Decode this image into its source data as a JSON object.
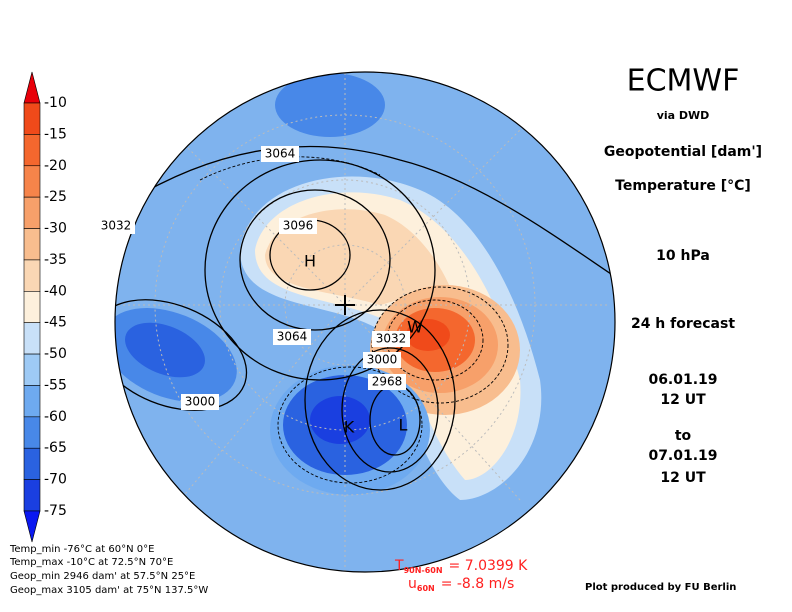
{
  "header": {
    "title": "ECMWF",
    "source": "via DWD",
    "field1": "Geopotential [dam']",
    "field2": "Temperature [°C]",
    "level": "10 hPa",
    "forecast": "24 h forecast",
    "start_date": "06.01.19",
    "start_time": "12 UT",
    "to": "to",
    "end_date": "07.01.19",
    "end_time": "12 UT"
  },
  "colorbar": {
    "labels": [
      "-10",
      "-15",
      "-20",
      "-25",
      "-30",
      "-35",
      "-40",
      "-45",
      "-50",
      "-55",
      "-60",
      "-65",
      "-70",
      "-75"
    ],
    "colors": [
      "#f04a1a",
      "#f4672e",
      "#f6844a",
      "#f7a06a",
      "#f8bd8e",
      "#fad7b4",
      "#fdf0dc",
      "#c8e0f8",
      "#9ecaf5",
      "#6eaaf0",
      "#4888e8",
      "#2a62e0",
      "#1a3fe0"
    ],
    "top_color": "#e8000a",
    "bottom_color": "#0a18f0"
  },
  "map": {
    "contour_labels": [
      "3064",
      "3032",
      "3096",
      "3064",
      "3032",
      "3000",
      "2968",
      "3000"
    ],
    "markers": [
      "H",
      "L",
      "W",
      "K"
    ]
  },
  "stats": [
    "Temp_min -76°C at 60°N 0°E",
    "Temp_max -10°C at 72.5°N 70°E",
    "Geop_min 2946 dam' at 57.5°N 25°E",
    "Geop_max 3105 dam' at 75°N 137.5°W"
  ],
  "diagnostics": [
    {
      "symbol": "T",
      "subscript": "90N-60N",
      "value": "= 7.0399 K"
    },
    {
      "symbol": "u",
      "subscript": "60N",
      "value": "= -8.8 m/s"
    }
  ],
  "credit": "Plot produced by FU Berlin"
}
